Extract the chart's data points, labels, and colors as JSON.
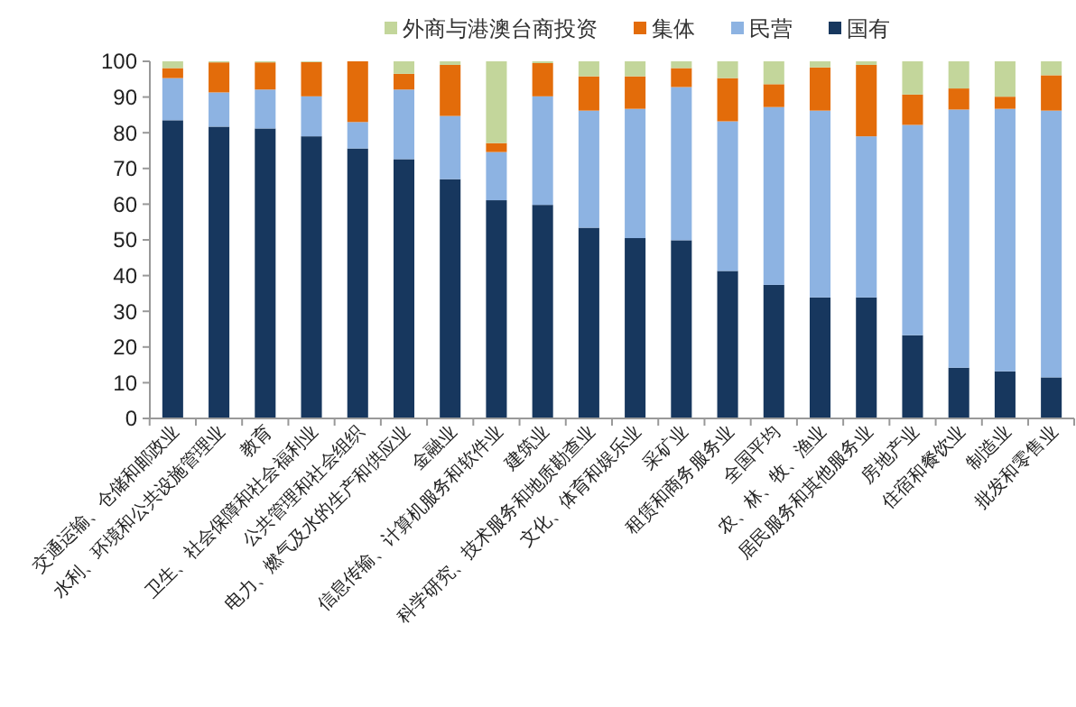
{
  "chart_data": {
    "type": "bar",
    "stacked": true,
    "legend": "top",
    "categories": [
      "交通运输、仓储和邮政业",
      "水利、环境和公共设施管理业",
      "教育",
      "卫生、社会保障和社会福利业",
      "公共管理和社会组织",
      "电力、燃气及水的生产和供应业",
      "金融业",
      "信息传输、计算机服务和软件业",
      "建筑业",
      "科学研究、技术服务和地质勘查业",
      "文化、体育和娱乐业",
      "采矿业",
      "租赁和商务服务业",
      "全国平均",
      "农、林、牧、渔业",
      "居民服务和其他服务业",
      "房地产业",
      "住宿和餐饮业",
      "制造业",
      "批发和零售业"
    ],
    "series": [
      {
        "name": "国有",
        "color": "#17375e",
        "values": [
          83.5,
          81.7,
          81.2,
          79.0,
          75.6,
          72.6,
          67.0,
          61.1,
          59.8,
          53.4,
          50.5,
          49.9,
          41.3,
          37.4,
          33.9,
          33.9,
          23.3,
          14.2,
          13.2,
          11.5
        ]
      },
      {
        "name": "民营",
        "color": "#8db3e2",
        "values": [
          11.8,
          9.6,
          10.9,
          11.2,
          7.4,
          19.5,
          17.7,
          13.5,
          30.4,
          32.8,
          36.2,
          42.9,
          41.9,
          49.8,
          52.3,
          45.1,
          58.9,
          72.3,
          73.5,
          74.7
        ]
      },
      {
        "name": "集体",
        "color": "#e36c0a",
        "values": [
          2.8,
          8.4,
          7.6,
          9.6,
          17.0,
          4.4,
          14.3,
          2.5,
          9.3,
          9.6,
          9.1,
          5.3,
          12.1,
          6.4,
          12.1,
          20.0,
          8.5,
          5.9,
          3.4,
          9.9
        ]
      },
      {
        "name": "外商与港澳台商投资",
        "color": "#c3d69b",
        "values": [
          1.9,
          0.3,
          0.3,
          0.2,
          0,
          3.5,
          1.0,
          22.9,
          0.5,
          4.2,
          4.2,
          1.9,
          4.7,
          6.4,
          1.7,
          1.0,
          9.3,
          7.6,
          9.9,
          3.9
        ]
      }
    ],
    "ylim": [
      0,
      100
    ],
    "yticks": [
      0,
      10,
      20,
      30,
      40,
      50,
      60,
      70,
      80,
      90,
      100
    ],
    "grid": false
  }
}
